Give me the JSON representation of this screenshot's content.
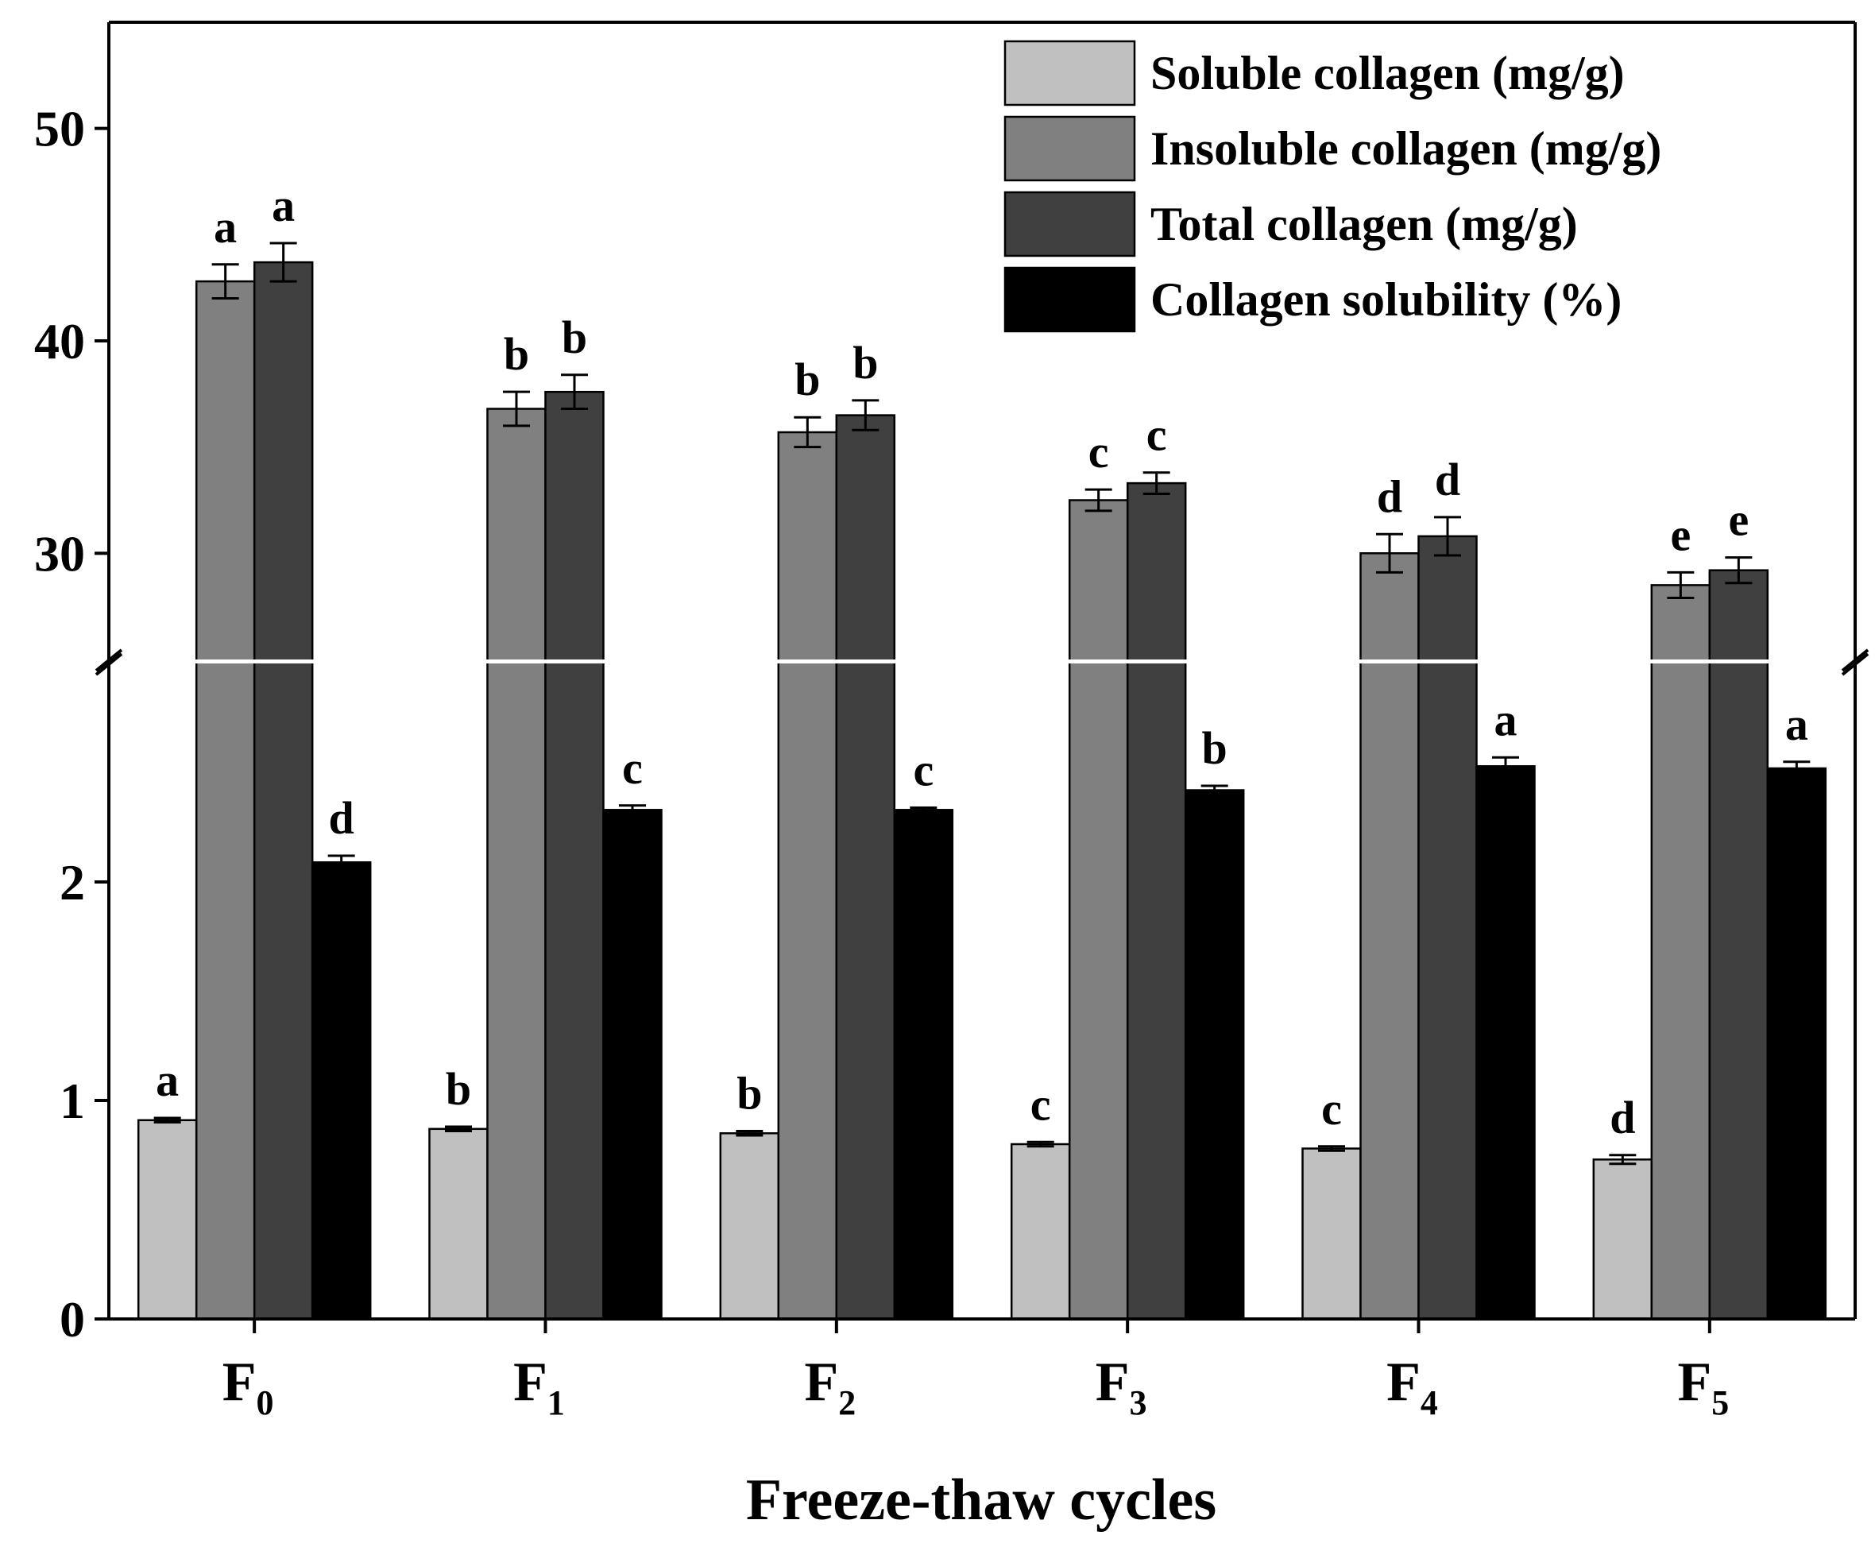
{
  "chart_data": {
    "type": "bar",
    "xlabel": "Freeze-thaw cycles",
    "ylabel": "",
    "broken_axis": true,
    "lower_ylim": [
      0,
      3
    ],
    "upper_ylim": [
      25,
      55
    ],
    "lower_ticks": [
      "0",
      "1",
      "2"
    ],
    "upper_ticks": [
      "30",
      "40",
      "50"
    ],
    "categories": [
      {
        "main": "F",
        "sub": "0"
      },
      {
        "main": "F",
        "sub": "1"
      },
      {
        "main": "F",
        "sub": "2"
      },
      {
        "main": "F",
        "sub": "3"
      },
      {
        "main": "F",
        "sub": "4"
      },
      {
        "main": "F",
        "sub": "5"
      }
    ],
    "legend_position": "top-right",
    "series": [
      {
        "name": "Soluble collagen (mg/g)",
        "color": "#c0c0c0",
        "values": [
          0.91,
          0.87,
          0.85,
          0.8,
          0.78,
          0.73
        ],
        "errors": [
          0.01,
          0.01,
          0.01,
          0.01,
          0.01,
          0.02
        ],
        "labels": [
          "a",
          "b",
          "b",
          "c",
          "c",
          "d"
        ]
      },
      {
        "name": "Insoluble collagen (mg/g)",
        "color": "#808080",
        "values": [
          42.8,
          36.8,
          35.7,
          32.5,
          30.0,
          28.5
        ],
        "errors": [
          0.8,
          0.8,
          0.7,
          0.5,
          0.9,
          0.6
        ],
        "labels": [
          "",
          "",
          "",
          "",
          "",
          ""
        ]
      },
      {
        "name": "Total collagen (mg/g)",
        "color": "#404040",
        "values": [
          43.7,
          37.6,
          36.5,
          33.3,
          30.8,
          29.2
        ],
        "errors": [
          0.9,
          0.8,
          0.7,
          0.5,
          0.9,
          0.6
        ],
        "labels": [
          "",
          "",
          "",
          "",
          "",
          ""
        ]
      },
      {
        "name": "Collagen solubility (%)",
        "color": "#000000",
        "values": [
          2.09,
          2.33,
          2.33,
          2.42,
          2.53,
          2.52
        ],
        "errors": [
          0.03,
          0.02,
          0.01,
          0.02,
          0.04,
          0.03
        ],
        "labels": [
          "d",
          "c",
          "c",
          "b",
          "a",
          "a"
        ]
      }
    ],
    "pair_labels": [
      [
        "a",
        "a"
      ],
      [
        "b",
        "b"
      ],
      [
        "b",
        "b"
      ],
      [
        "c",
        "c"
      ],
      [
        "d",
        "d"
      ],
      [
        "e",
        "e"
      ]
    ]
  }
}
